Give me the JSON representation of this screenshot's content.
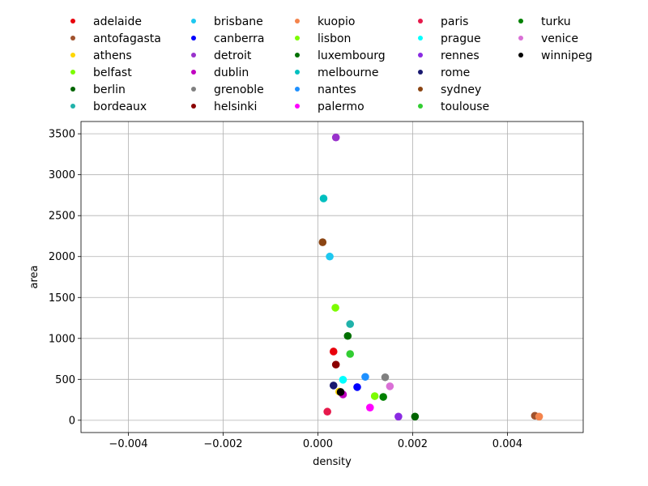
{
  "chart_data": {
    "type": "scatter",
    "xlabel": "density",
    "ylabel": "area",
    "xlim": [
      -0.005,
      0.0056
    ],
    "ylim": [
      -150,
      3650
    ],
    "x_ticks": [
      -0.004,
      -0.002,
      0.0,
      0.002,
      0.004
    ],
    "x_tick_labels": [
      "−0.004",
      "−0.002",
      "0.000",
      "0.002",
      "0.004"
    ],
    "y_ticks": [
      0,
      500,
      1000,
      1500,
      2000,
      2500,
      3000,
      3500
    ],
    "y_tick_labels": [
      "0",
      "500",
      "1000",
      "1500",
      "2000",
      "2500",
      "3000",
      "3500"
    ],
    "grid": true,
    "legend_position": "top, above plot, 5 columns",
    "series": [
      {
        "name": "adelaide",
        "color": "#e8000b",
        "x": 0.00033,
        "y": 840
      },
      {
        "name": "antofagasta",
        "color": "#a0522d",
        "x": 0.00458,
        "y": 55
      },
      {
        "name": "athens",
        "color": "#ffd700",
        "x": 0.00045,
        "y": 350
      },
      {
        "name": "belfast",
        "color": "#7cfc00",
        "x": 0.0012,
        "y": 295
      },
      {
        "name": "berlin",
        "color": "#006400",
        "x": 0.00205,
        "y": 45
      },
      {
        "name": "bordeaux",
        "color": "#20b2aa",
        "x": 0.00068,
        "y": 1175
      },
      {
        "name": "brisbane",
        "color": "#1ec8f0",
        "x": 0.00025,
        "y": 2000
      },
      {
        "name": "canberra",
        "color": "#0000ff",
        "x": 0.00083,
        "y": 405
      },
      {
        "name": "detroit",
        "color": "#9932cc",
        "x": 0.00038,
        "y": 3455
      },
      {
        "name": "dublin",
        "color": "#c000c0",
        "x": 0.00053,
        "y": 315
      },
      {
        "name": "grenoble",
        "color": "#808080",
        "x": 0.00142,
        "y": 525
      },
      {
        "name": "helsinki",
        "color": "#8b0000",
        "x": 0.00038,
        "y": 680
      },
      {
        "name": "kuopio",
        "color": "#f4844c",
        "x": 0.00467,
        "y": 45
      },
      {
        "name": "lisbon",
        "color": "#7cfc00",
        "x": 0.00037,
        "y": 1375
      },
      {
        "name": "luxembourg",
        "color": "#007000",
        "x": 0.00063,
        "y": 1030
      },
      {
        "name": "melbourne",
        "color": "#00bfbf",
        "x": 0.00012,
        "y": 2710
      },
      {
        "name": "nantes",
        "color": "#1e90ff",
        "x": 0.001,
        "y": 530
      },
      {
        "name": "palermo",
        "color": "#ff00ff",
        "x": 0.0011,
        "y": 155
      },
      {
        "name": "paris",
        "color": "#e6194b",
        "x": 0.0002,
        "y": 105
      },
      {
        "name": "prague",
        "color": "#00ffff",
        "x": 0.00053,
        "y": 495
      },
      {
        "name": "rennes",
        "color": "#8a2be2",
        "x": 0.0017,
        "y": 45
      },
      {
        "name": "rome",
        "color": "#191970",
        "x": 0.00033,
        "y": 425
      },
      {
        "name": "sydney",
        "color": "#8b4513",
        "x": 0.0001,
        "y": 2175
      },
      {
        "name": "toulouse",
        "color": "#32cd32",
        "x": 0.00068,
        "y": 810
      },
      {
        "name": "turku",
        "color": "#008000",
        "x": 0.00138,
        "y": 285
      },
      {
        "name": "venice",
        "color": "#da70d6",
        "x": 0.00152,
        "y": 415
      },
      {
        "name": "winnipeg",
        "color": "#000000",
        "x": 0.00048,
        "y": 345
      }
    ]
  }
}
